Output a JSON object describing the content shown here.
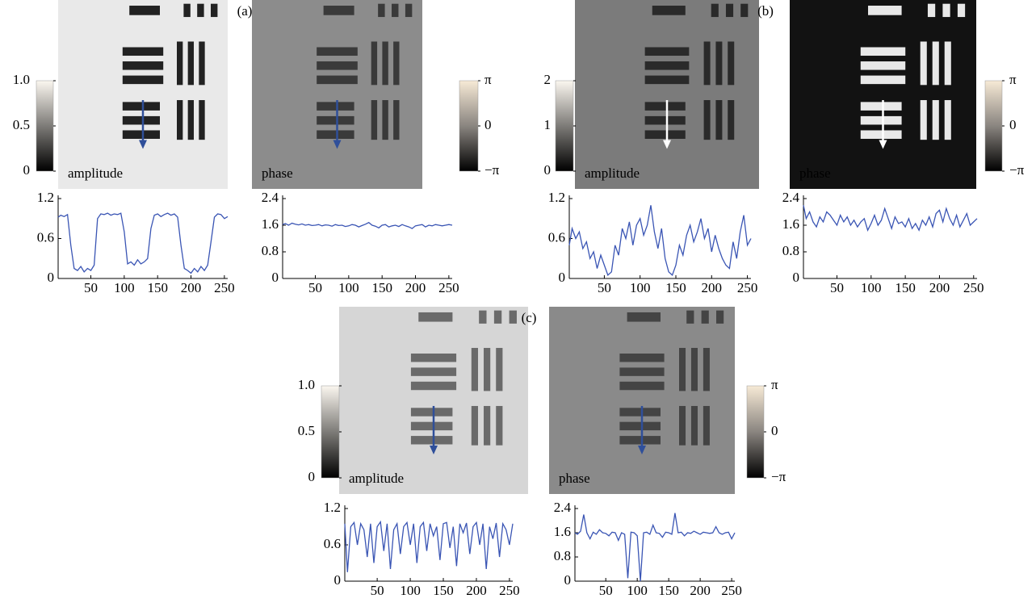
{
  "panels": [
    {
      "label": "(a)",
      "amplitude": {
        "caption": "amplitude",
        "colorbar_lim": [
          0,
          1
        ],
        "colorbar_ticks": [
          {
            "value": 1,
            "label": "1.0"
          },
          0.5,
          0
        ]
      },
      "phase": {
        "caption": "phase",
        "colorbar_lim": [
          -3.14159,
          3.14159
        ],
        "colorbar_ticks": [
          {
            "value": 3.14159,
            "label": "π"
          },
          0,
          {
            "value": -3.14159,
            "label": "−π"
          }
        ]
      }
    },
    {
      "label": "(b)",
      "amplitude": {
        "caption": "amplitude",
        "colorbar_lim": [
          0,
          2
        ],
        "colorbar_ticks": [
          2,
          1,
          0
        ]
      },
      "phase": {
        "caption": "phase",
        "colorbar_lim": [
          -3.14159,
          3.14159
        ],
        "colorbar_ticks": [
          {
            "value": 3.14159,
            "label": "π"
          },
          0,
          {
            "value": -3.14159,
            "label": "−π"
          }
        ]
      }
    },
    {
      "label": "(c)",
      "amplitude": {
        "caption": "amplitude",
        "colorbar_lim": [
          0,
          1
        ],
        "colorbar_ticks": [
          {
            "value": 1,
            "label": "1.0"
          },
          0.5,
          0
        ]
      },
      "phase": {
        "caption": "phase",
        "colorbar_lim": [
          -3.14159,
          3.14159
        ],
        "colorbar_ticks": [
          {
            "value": 3.14159,
            "label": "π"
          },
          0,
          {
            "value": -3.14159,
            "label": "−π"
          }
        ]
      }
    }
  ],
  "chart_data": [
    {
      "type": "line",
      "color": "#3a55b4",
      "xlim": [
        1,
        255
      ],
      "xticks": [
        50,
        100,
        150,
        200,
        250
      ],
      "ylim": [
        0,
        1.2
      ],
      "yticks": [
        0,
        0.6,
        1.2
      ],
      "x": [
        1,
        5,
        10,
        15,
        20,
        25,
        30,
        35,
        40,
        45,
        50,
        55,
        60,
        65,
        70,
        75,
        80,
        85,
        90,
        95,
        100,
        105,
        110,
        115,
        120,
        125,
        130,
        135,
        140,
        145,
        150,
        155,
        160,
        165,
        170,
        175,
        180,
        185,
        190,
        195,
        200,
        205,
        210,
        215,
        220,
        225,
        230,
        235,
        240,
        245,
        250,
        255
      ],
      "values": [
        0.92,
        0.95,
        0.93,
        0.96,
        0.5,
        0.15,
        0.12,
        0.18,
        0.1,
        0.15,
        0.12,
        0.2,
        0.9,
        0.97,
        0.96,
        0.98,
        0.95,
        0.97,
        0.96,
        0.98,
        0.7,
        0.22,
        0.25,
        0.2,
        0.28,
        0.22,
        0.25,
        0.3,
        0.75,
        0.95,
        0.97,
        0.93,
        0.96,
        0.98,
        0.95,
        0.97,
        0.92,
        0.5,
        0.15,
        0.12,
        0.08,
        0.15,
        0.1,
        0.18,
        0.12,
        0.2,
        0.55,
        0.92,
        0.97,
        0.96,
        0.9,
        0.93
      ]
    },
    {
      "type": "line",
      "color": "#3a55b4",
      "xlim": [
        1,
        255
      ],
      "xticks": [
        50,
        100,
        150,
        200,
        250
      ],
      "ylim": [
        0,
        2.4
      ],
      "yticks": [
        0,
        0.8,
        1.6,
        2.4
      ],
      "x": [
        1,
        5,
        10,
        15,
        20,
        25,
        30,
        35,
        40,
        45,
        50,
        55,
        60,
        65,
        70,
        75,
        80,
        85,
        90,
        95,
        100,
        105,
        110,
        115,
        120,
        125,
        130,
        135,
        140,
        145,
        150,
        155,
        160,
        165,
        170,
        175,
        180,
        185,
        190,
        195,
        200,
        205,
        210,
        215,
        220,
        225,
        230,
        235,
        240,
        245,
        250,
        255
      ],
      "values": [
        1.62,
        1.65,
        1.6,
        1.66,
        1.63,
        1.61,
        1.64,
        1.6,
        1.62,
        1.59,
        1.6,
        1.62,
        1.58,
        1.61,
        1.6,
        1.57,
        1.62,
        1.59,
        1.6,
        1.56,
        1.58,
        1.62,
        1.6,
        1.55,
        1.59,
        1.63,
        1.68,
        1.6,
        1.57,
        1.52,
        1.6,
        1.62,
        1.55,
        1.58,
        1.6,
        1.56,
        1.62,
        1.58,
        1.55,
        1.5,
        1.58,
        1.6,
        1.62,
        1.55,
        1.6,
        1.58,
        1.62,
        1.6,
        1.58,
        1.6,
        1.62,
        1.6
      ]
    },
    {
      "type": "line",
      "color": "#3a55b4",
      "xlim": [
        1,
        255
      ],
      "xticks": [
        50,
        100,
        150,
        200,
        250
      ],
      "ylim": [
        0,
        1.2
      ],
      "yticks": [
        0,
        0.6,
        1.2
      ],
      "x": [
        1,
        5,
        10,
        15,
        20,
        25,
        30,
        35,
        40,
        45,
        50,
        55,
        60,
        65,
        70,
        75,
        80,
        85,
        90,
        95,
        100,
        105,
        110,
        115,
        120,
        125,
        130,
        135,
        140,
        145,
        150,
        155,
        160,
        165,
        170,
        175,
        180,
        185,
        190,
        195,
        200,
        205,
        210,
        215,
        220,
        225,
        230,
        235,
        240,
        245,
        250,
        255
      ],
      "values": [
        0.5,
        0.75,
        0.6,
        0.7,
        0.45,
        0.55,
        0.3,
        0.4,
        0.15,
        0.35,
        0.2,
        0.05,
        0.1,
        0.5,
        0.35,
        0.75,
        0.6,
        0.85,
        0.5,
        0.8,
        0.9,
        0.65,
        0.8,
        1.1,
        0.7,
        0.45,
        0.75,
        0.3,
        0.1,
        0.05,
        0.2,
        0.5,
        0.35,
        0.65,
        0.8,
        0.55,
        0.7,
        0.9,
        0.6,
        0.75,
        0.4,
        0.65,
        0.45,
        0.3,
        0.2,
        0.15,
        0.55,
        0.3,
        0.7,
        0.95,
        0.5,
        0.6
      ]
    },
    {
      "type": "line",
      "color": "#3a55b4",
      "xlim": [
        1,
        255
      ],
      "xticks": [
        50,
        100,
        150,
        200,
        250
      ],
      "ylim": [
        0,
        2.4
      ],
      "yticks": [
        0,
        0.8,
        1.6,
        2.4
      ],
      "x": [
        1,
        5,
        10,
        15,
        20,
        25,
        30,
        35,
        40,
        45,
        50,
        55,
        60,
        65,
        70,
        75,
        80,
        85,
        90,
        95,
        100,
        105,
        110,
        115,
        120,
        125,
        130,
        135,
        140,
        145,
        150,
        155,
        160,
        165,
        170,
        175,
        180,
        185,
        190,
        195,
        200,
        205,
        210,
        215,
        220,
        225,
        230,
        235,
        240,
        245,
        250,
        255
      ],
      "values": [
        2.2,
        1.8,
        2.0,
        1.7,
        1.55,
        1.85,
        1.7,
        2.0,
        1.9,
        1.75,
        1.6,
        1.9,
        1.7,
        1.85,
        1.6,
        1.75,
        1.55,
        1.7,
        1.8,
        1.45,
        1.65,
        1.9,
        1.6,
        1.75,
        2.1,
        1.8,
        1.5,
        1.85,
        1.65,
        1.7,
        1.55,
        1.8,
        1.5,
        1.65,
        1.45,
        1.75,
        1.6,
        1.85,
        1.55,
        1.95,
        2.05,
        1.7,
        2.1,
        1.8,
        1.6,
        1.9,
        1.55,
        1.75,
        1.95,
        1.6,
        1.7,
        1.8
      ]
    },
    {
      "type": "line",
      "color": "#3a55b4",
      "xlim": [
        1,
        255
      ],
      "xticks": [
        50,
        100,
        150,
        200,
        250
      ],
      "ylim": [
        0,
        1.2
      ],
      "yticks": [
        0,
        0.6,
        1.2
      ],
      "x": [
        1,
        5,
        10,
        15,
        20,
        25,
        30,
        35,
        40,
        45,
        50,
        55,
        60,
        65,
        70,
        75,
        80,
        85,
        90,
        95,
        100,
        105,
        110,
        115,
        120,
        125,
        130,
        135,
        140,
        145,
        150,
        155,
        160,
        165,
        170,
        175,
        180,
        185,
        190,
        195,
        200,
        205,
        210,
        215,
        220,
        225,
        230,
        235,
        240,
        245,
        250,
        255
      ],
      "values": [
        0.95,
        0.15,
        0.9,
        0.97,
        0.6,
        0.95,
        0.85,
        0.4,
        0.95,
        0.3,
        0.9,
        0.98,
        0.5,
        0.95,
        0.2,
        0.85,
        0.95,
        0.45,
        0.9,
        0.97,
        0.6,
        0.95,
        0.3,
        0.9,
        0.97,
        0.5,
        0.95,
        0.75,
        0.9,
        0.35,
        0.95,
        0.97,
        0.55,
        0.9,
        0.25,
        0.95,
        0.8,
        0.96,
        0.45,
        0.9,
        0.97,
        0.6,
        0.95,
        0.2,
        0.9,
        0.7,
        0.96,
        0.4,
        0.95,
        0.85,
        0.6,
        0.95
      ]
    },
    {
      "type": "line",
      "color": "#3a55b4",
      "xlim": [
        1,
        255
      ],
      "xticks": [
        50,
        100,
        150,
        200,
        250
      ],
      "ylim": [
        0,
        2.4
      ],
      "yticks": [
        0,
        0.8,
        1.6,
        2.4
      ],
      "x": [
        1,
        5,
        10,
        15,
        20,
        25,
        30,
        35,
        40,
        45,
        50,
        55,
        60,
        65,
        70,
        75,
        80,
        85,
        90,
        95,
        100,
        105,
        110,
        115,
        120,
        125,
        130,
        135,
        140,
        145,
        150,
        155,
        160,
        165,
        170,
        175,
        180,
        185,
        190,
        195,
        200,
        205,
        210,
        215,
        220,
        225,
        230,
        235,
        240,
        245,
        250,
        255
      ],
      "values": [
        1.6,
        1.55,
        1.65,
        2.2,
        1.6,
        1.4,
        1.62,
        1.55,
        1.7,
        1.6,
        1.58,
        1.5,
        1.62,
        1.6,
        1.35,
        1.6,
        1.55,
        0.1,
        1.62,
        1.6,
        1.5,
        0.0,
        1.6,
        1.62,
        1.55,
        1.85,
        1.6,
        1.58,
        1.45,
        1.62,
        1.6,
        1.55,
        2.25,
        1.6,
        1.62,
        1.5,
        1.6,
        1.58,
        1.65,
        1.6,
        1.55,
        1.62,
        1.6,
        1.58,
        1.6,
        1.8,
        1.6,
        1.55,
        1.6,
        1.62,
        1.4,
        1.6
      ]
    }
  ]
}
